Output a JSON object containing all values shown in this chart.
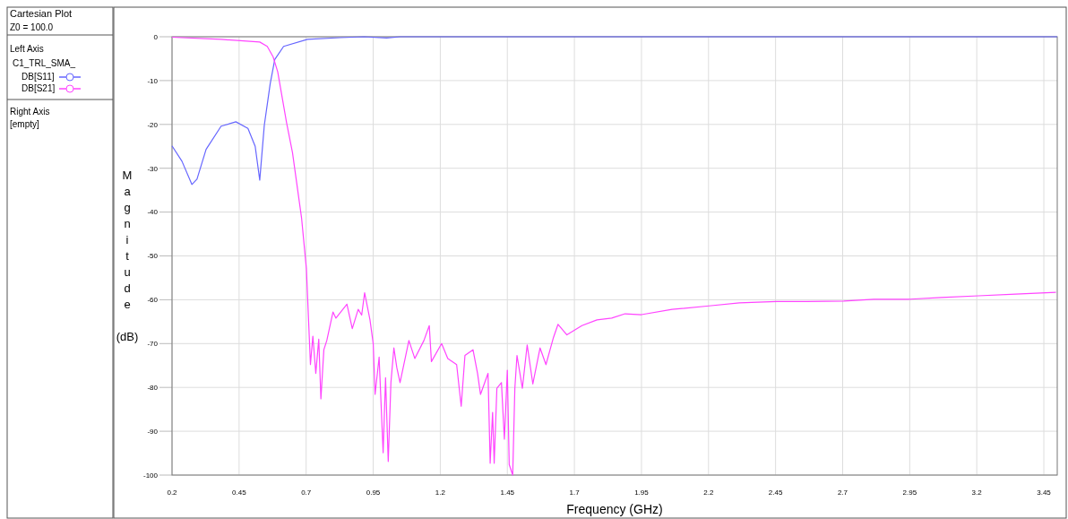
{
  "chart_data": {
    "type": "line",
    "title": "Cartesian Plot",
    "annotations": [
      "Z0 = 100.0",
      "Left Axis",
      "Right Axis",
      "[empty]"
    ],
    "legend_title": "C1_TRL_SMA_",
    "xlabel": "Frequency (GHz)",
    "ylabel": "Magnitude (dB)",
    "xlim": [
      0.2,
      3.5
    ],
    "ylim": [
      -100,
      0
    ],
    "xticks": [
      0.2,
      0.45,
      0.7,
      0.95,
      1.2,
      1.45,
      1.7,
      1.95,
      2.2,
      2.45,
      2.7,
      2.95,
      3.2,
      3.45
    ],
    "yticks": [
      0,
      -10,
      -20,
      -30,
      -40,
      -50,
      -60,
      -70,
      -80,
      -90,
      -100
    ],
    "grid": true,
    "legend": "left",
    "line_style": "solid",
    "series": [
      {
        "name": "DB[S11]",
        "color": "#6666ff",
        "x": [
          0.2,
          0.237,
          0.274,
          0.293,
          0.327,
          0.383,
          0.438,
          0.483,
          0.51,
          0.527,
          0.544,
          0.566,
          0.583,
          0.616,
          0.705,
          0.827,
          0.916,
          1.0,
          1.05,
          1.2,
          1.5,
          2.0,
          2.5,
          3.0,
          3.5
        ],
        "values": [
          -24.9,
          -28.4,
          -33.7,
          -32.5,
          -25.7,
          -20.4,
          -19.4,
          -20.9,
          -25.0,
          -32.7,
          -20.2,
          -10.7,
          -5.2,
          -2.2,
          -0.6,
          -0.2,
          0,
          -0.3,
          0,
          0,
          0,
          0,
          0,
          0,
          0
        ]
      },
      {
        "name": "DB[S21]",
        "color": "#ff44ff",
        "x": [
          0.2,
          0.383,
          0.527,
          0.555,
          0.577,
          0.594,
          0.627,
          0.649,
          0.683,
          0.701,
          0.716,
          0.725,
          0.736,
          0.747,
          0.755,
          0.766,
          0.777,
          0.8,
          0.811,
          0.852,
          0.872,
          0.894,
          0.907,
          0.918,
          0.938,
          0.95,
          0.957,
          0.972,
          0.987,
          0.996,
          1.006,
          1.016,
          1.027,
          1.038,
          1.05,
          1.083,
          1.105,
          1.139,
          1.159,
          1.167,
          1.205,
          1.228,
          1.261,
          1.278,
          1.292,
          1.322,
          1.339,
          1.35,
          1.378,
          1.386,
          1.395,
          1.401,
          1.411,
          1.428,
          1.439,
          1.45,
          1.457,
          1.47,
          1.478,
          1.486,
          1.506,
          1.524,
          1.545,
          1.572,
          1.594,
          1.622,
          1.639,
          1.672,
          1.728,
          1.784,
          1.839,
          1.889,
          1.95,
          2.064,
          2.202,
          2.315,
          2.453,
          2.566,
          2.704,
          2.817,
          2.943,
          3.068,
          3.206,
          3.344,
          3.495
        ],
        "values": [
          -0.1,
          -0.6,
          -1.2,
          -2.2,
          -4.6,
          -8.0,
          -19.6,
          -26.4,
          -41.4,
          -53,
          -74.8,
          -68.3,
          -76.8,
          -69,
          -82.6,
          -71.4,
          -69.3,
          -62.8,
          -64.2,
          -61,
          -66.6,
          -62.2,
          -63.5,
          -58.4,
          -64.6,
          -70,
          -81.6,
          -73.1,
          -94.9,
          -77.8,
          -96.9,
          -78.9,
          -71,
          -75.5,
          -78.9,
          -69.3,
          -73.4,
          -69.3,
          -65.9,
          -74.1,
          -70,
          -73.4,
          -74.8,
          -84.3,
          -72.7,
          -71.4,
          -76.8,
          -81.6,
          -76.8,
          -97.3,
          -85.7,
          -97.3,
          -80.2,
          -78.9,
          -91.8,
          -76.1,
          -97.6,
          -100,
          -80.2,
          -72.7,
          -80.2,
          -70.3,
          -79.2,
          -71,
          -74.8,
          -68.6,
          -65.6,
          -68,
          -65.9,
          -64.6,
          -64.2,
          -63.2,
          -63.4,
          -62.2,
          -61.4,
          -60.7,
          -60.4,
          -60.4,
          -60.3,
          -59.9,
          -59.9,
          -59.5,
          -59.1,
          -58.7,
          -58.3
        ]
      }
    ]
  }
}
